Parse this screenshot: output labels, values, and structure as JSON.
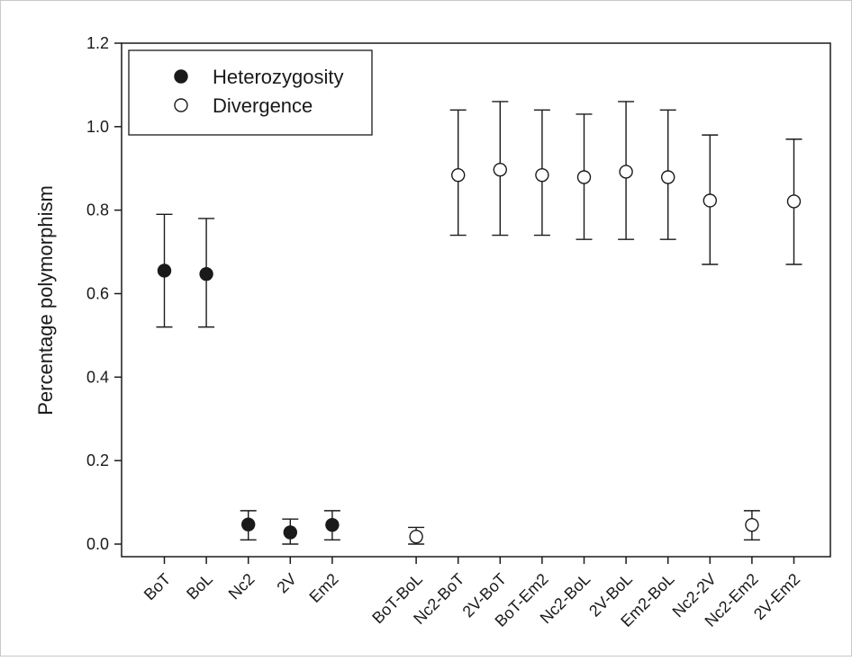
{
  "chart_data": {
    "type": "scatter",
    "title": "",
    "xlabel": "",
    "ylabel": "Percentage polymorphism",
    "ylim": [
      0,
      1.2
    ],
    "yticks": [
      "0.0",
      "0.2",
      "0.4",
      "0.6",
      "0.8",
      "1.0",
      "1.2"
    ],
    "categories": [
      "BoT",
      "BoL",
      "Nc2",
      "2V",
      "Em2",
      "",
      "BoT-BoL",
      "Nc2-BoT",
      "2V-BoT",
      "BoT-Em2",
      "Nc2-BoL",
      "2V-BoL",
      "Em2-BoL",
      "Nc2-2V",
      "Nc2-Em2",
      "2V-Em2"
    ],
    "grid": false,
    "legend_position": "top-left",
    "series": [
      {
        "name": "Heterozygosity",
        "marker": "filled-circle",
        "color": "#1a1a1a",
        "points": [
          {
            "x": "BoT",
            "y": 0.655,
            "low": 0.52,
            "high": 0.79
          },
          {
            "x": "BoL",
            "y": 0.647,
            "low": 0.52,
            "high": 0.78
          },
          {
            "x": "Nc2",
            "y": 0.047,
            "low": 0.01,
            "high": 0.08
          },
          {
            "x": "2V",
            "y": 0.028,
            "low": 0.0,
            "high": 0.06
          },
          {
            "x": "Em2",
            "y": 0.046,
            "low": 0.01,
            "high": 0.08
          }
        ]
      },
      {
        "name": "Divergence",
        "marker": "open-circle",
        "color": "#1a1a1a",
        "points": [
          {
            "x": "BoT-BoL",
            "y": 0.018,
            "low": 0.0,
            "high": 0.04
          },
          {
            "x": "Nc2-BoT",
            "y": 0.884,
            "low": 0.74,
            "high": 1.04
          },
          {
            "x": "2V-BoT",
            "y": 0.897,
            "low": 0.74,
            "high": 1.06
          },
          {
            "x": "BoT-Em2",
            "y": 0.884,
            "low": 0.74,
            "high": 1.04
          },
          {
            "x": "Nc2-BoL",
            "y": 0.879,
            "low": 0.73,
            "high": 1.03
          },
          {
            "x": "2V-BoL",
            "y": 0.892,
            "low": 0.73,
            "high": 1.06
          },
          {
            "x": "Em2-BoL",
            "y": 0.879,
            "low": 0.73,
            "high": 1.04
          },
          {
            "x": "Nc2-2V",
            "y": 0.823,
            "low": 0.67,
            "high": 0.98
          },
          {
            "x": "Nc2-Em2",
            "y": 0.046,
            "low": 0.01,
            "high": 0.08
          },
          {
            "x": "2V-Em2",
            "y": 0.821,
            "low": 0.67,
            "high": 0.97
          }
        ]
      }
    ]
  }
}
